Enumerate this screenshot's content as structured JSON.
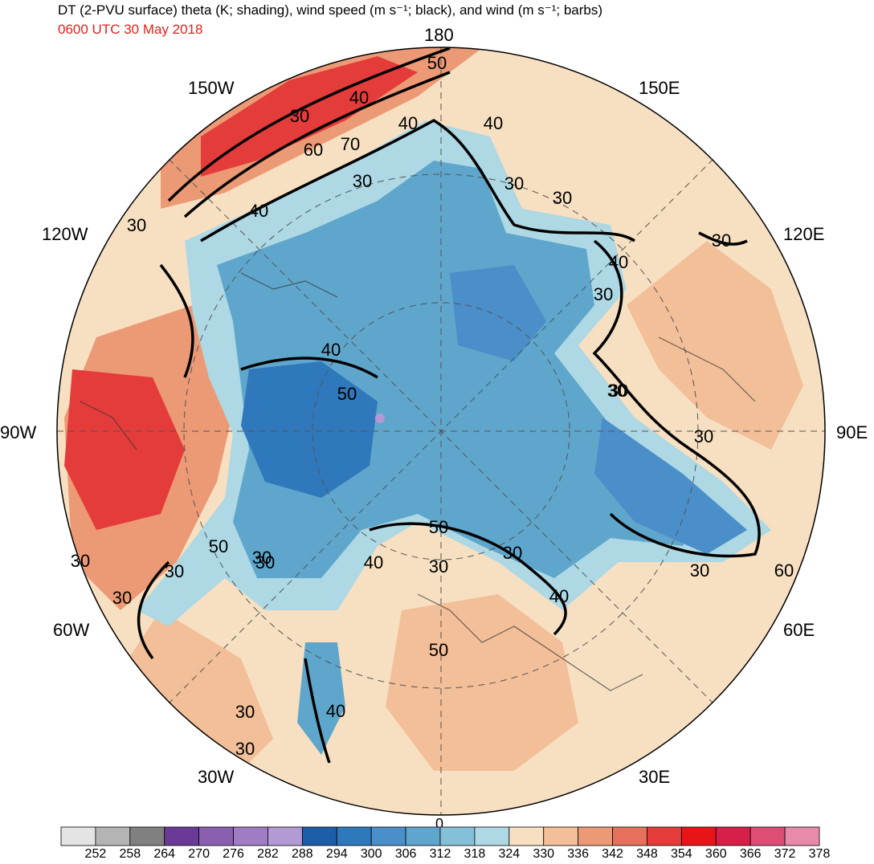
{
  "title": "DT (2-PVU surface) theta (K; shading), wind speed (m s⁻¹; black), and wind (m s⁻¹; barbs)",
  "valid_time": "0600 UTC 30 May 2018",
  "valid_time_color": "#e8201a",
  "longitude_labels": {
    "top": "180",
    "upper_left": "150W",
    "upper_right": "150E",
    "left_upper": "120W",
    "right_upper": "120E",
    "left": "90W",
    "right": "90E",
    "left_lower": "60W",
    "right_lower": "60E",
    "lower_left": "30W",
    "lower_right": "30E",
    "bottom": "0"
  },
  "contour_labels": [
    "50",
    "40",
    "30",
    "60",
    "70",
    "40",
    "40",
    "30",
    "40",
    "30",
    "30",
    "30",
    "40",
    "50",
    "40",
    "30",
    "30",
    "30",
    "30",
    "40",
    "50",
    "30",
    "30",
    "30",
    "50",
    "30",
    "60",
    "40",
    "30",
    "30",
    "30",
    "50",
    "40",
    "30",
    "30",
    "30",
    "30"
  ],
  "colorbar": {
    "ticks": [
      "252",
      "258",
      "264",
      "270",
      "276",
      "282",
      "288",
      "294",
      "300",
      "306",
      "312",
      "318",
      "324",
      "330",
      "336",
      "342",
      "348",
      "354",
      "360",
      "366",
      "372",
      "378"
    ],
    "colors": [
      "#e4e4e4",
      "#b4b4b4",
      "#808080",
      "#6a3b96",
      "#8a5fb0",
      "#9f7cc4",
      "#b39ad4",
      "#1d5ea8",
      "#2f78bc",
      "#4a8fc9",
      "#5fa6cc",
      "#86bfd8",
      "#add8e4",
      "#f7e0c2",
      "#f2bf99",
      "#ec9a75",
      "#e5705c",
      "#e43c3a",
      "#e81518",
      "#d6204a",
      "#dd4d74",
      "#e88aaa"
    ]
  }
}
